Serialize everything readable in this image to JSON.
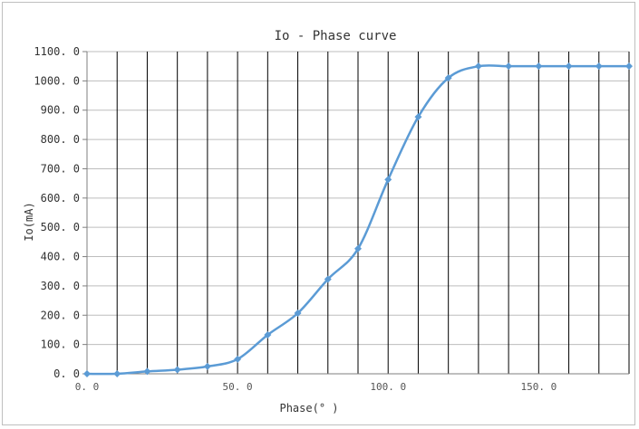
{
  "chart_data": {
    "type": "line",
    "title": "Io - Phase curve",
    "xlabel": "Phase(° )",
    "ylabel": "Io(mA)",
    "xlim": [
      0,
      180
    ],
    "ylim": [
      0,
      1100
    ],
    "xticks": [
      0,
      50,
      100,
      150
    ],
    "xtick_labels": [
      "0. 0",
      "50. 0",
      "100. 0",
      "150. 0"
    ],
    "yticks": [
      0,
      100,
      200,
      300,
      400,
      500,
      600,
      700,
      800,
      900,
      1000,
      1100
    ],
    "ytick_labels": [
      "0. 0",
      "100. 0",
      "200. 0",
      "300. 0",
      "400. 0",
      "500. 0",
      "600. 0",
      "700. 0",
      "800. 0",
      "900. 0",
      "1000. 0",
      "1100. 0"
    ],
    "vertical_gridlines": [
      10,
      20,
      30,
      40,
      50,
      60,
      70,
      80,
      90,
      100,
      110,
      120,
      130,
      140,
      150,
      160,
      170,
      180
    ],
    "grid": true,
    "legend": "none",
    "series": [
      {
        "color": "#5b9bd5",
        "x": [
          0,
          10,
          20,
          30,
          40,
          50,
          60,
          70,
          80,
          90,
          100,
          110,
          120,
          130,
          140,
          150,
          160,
          170,
          180
        ],
        "y": [
          0,
          0,
          8,
          14,
          25,
          50,
          133,
          207,
          323,
          427,
          663,
          877,
          1010,
          1050,
          1050,
          1050,
          1050,
          1050,
          1050
        ]
      }
    ]
  }
}
